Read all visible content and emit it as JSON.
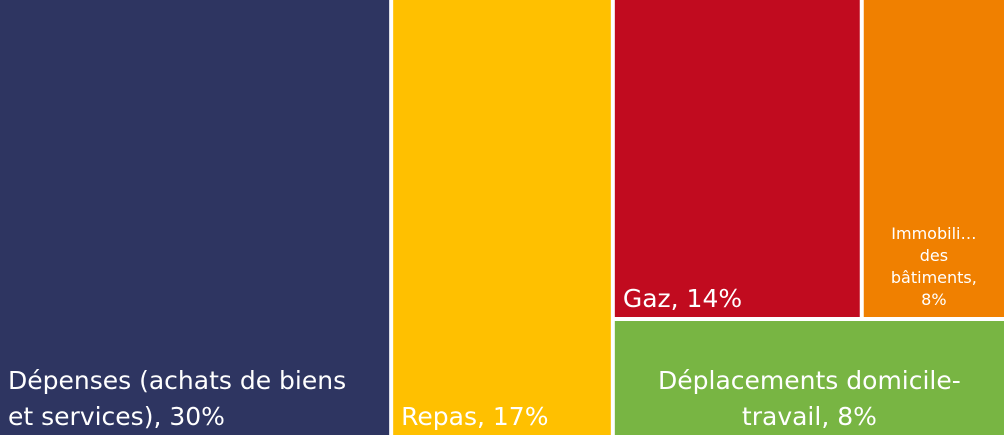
{
  "chart_data": {
    "type": "treemap",
    "labels": [
      [
        "Dépenses (achats de biens",
        "et services), 30%"
      ],
      [
        "Repas, 17%"
      ],
      [
        "Gaz, 14%"
      ],
      [
        "Immobili…",
        "des",
        "bâtiments,",
        "8%"
      ],
      [
        "Déplacements domicile-",
        "travail, 8%"
      ]
    ],
    "values": [
      30,
      17,
      14,
      8,
      8
    ],
    "colors": [
      "#2e3561",
      "#ffc000",
      "#c10b1f",
      "#f08000",
      "#78b543"
    ]
  }
}
